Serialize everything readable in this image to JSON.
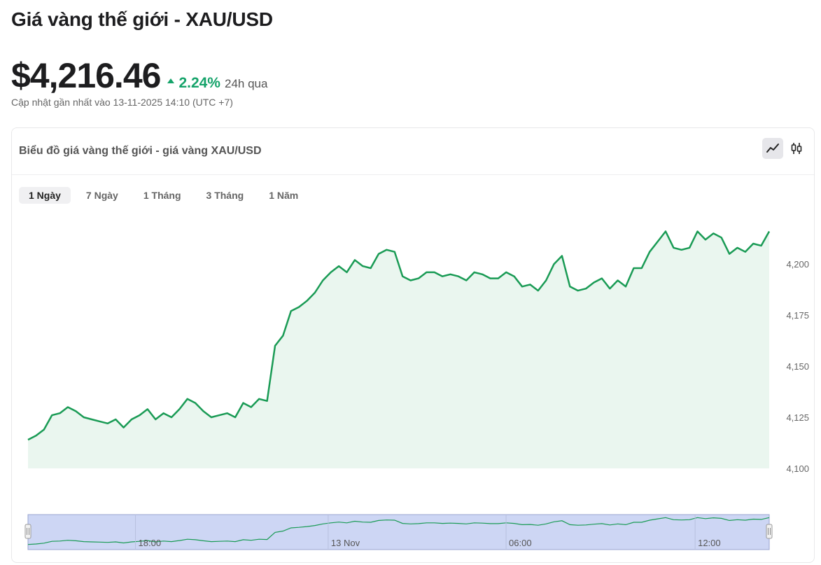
{
  "header": {
    "title": "Giá vàng thế giới - XAU/USD",
    "price": "$4,216.46",
    "change_pct": "2.24%",
    "change_period": "24h qua",
    "updated": "Cập nhật gần nhất vào 13-11-2025 14:10 (UTC +7)"
  },
  "card": {
    "title": "Biểu đồ giá vàng thế giới - giá vàng XAU/USD",
    "chart_types": [
      {
        "id": "line",
        "icon": "line-chart-icon",
        "active": true
      },
      {
        "id": "candle",
        "icon": "candlestick-icon",
        "active": false
      }
    ],
    "periods": [
      {
        "label": "1 Ngày",
        "active": true
      },
      {
        "label": "7 Ngày",
        "active": false
      },
      {
        "label": "1 Tháng",
        "active": false
      },
      {
        "label": "3 Tháng",
        "active": false
      },
      {
        "label": "1 Năm",
        "active": false
      }
    ]
  },
  "colors": {
    "line": "#1a9b55",
    "area": "#eaf6ef",
    "navigator_fill": "#cdd6f4",
    "accent_up": "#15a36a"
  },
  "chart_data": {
    "type": "area",
    "ylim": [
      4100,
      4222
    ],
    "yticks": [
      4100,
      4125,
      4150,
      4175,
      4200
    ],
    "ytick_labels": [
      "4,100",
      "4,125",
      "4,150",
      "4,175",
      "4,200"
    ],
    "navigator_labels": [
      "18:00",
      "13 Nov",
      "06:00",
      "12:00"
    ],
    "navigator_label_pos": [
      0.145,
      0.405,
      0.645,
      0.9
    ],
    "values": [
      4114,
      4116,
      4119,
      4126,
      4127,
      4130,
      4128,
      4125,
      4124,
      4123,
      4122,
      4124,
      4120,
      4124,
      4126,
      4129,
      4124,
      4127,
      4125,
      4129,
      4134,
      4132,
      4128,
      4125,
      4126,
      4127,
      4125,
      4132,
      4130,
      4134,
      4133,
      4160,
      4165,
      4177,
      4179,
      4182,
      4186,
      4192,
      4196,
      4199,
      4196,
      4202,
      4199,
      4198,
      4205,
      4207,
      4206,
      4194,
      4192,
      4193,
      4196,
      4196,
      4194,
      4195,
      4194,
      4192,
      4196,
      4195,
      4193,
      4193,
      4196,
      4194,
      4189,
      4190,
      4187,
      4192,
      4200,
      4204,
      4189,
      4187,
      4188,
      4191,
      4193,
      4188,
      4192,
      4189,
      4198,
      4198,
      4206,
      4211,
      4216,
      4208,
      4207,
      4208,
      4216,
      4212,
      4215,
      4213,
      4205,
      4208,
      4206,
      4210,
      4209,
      4216
    ]
  }
}
